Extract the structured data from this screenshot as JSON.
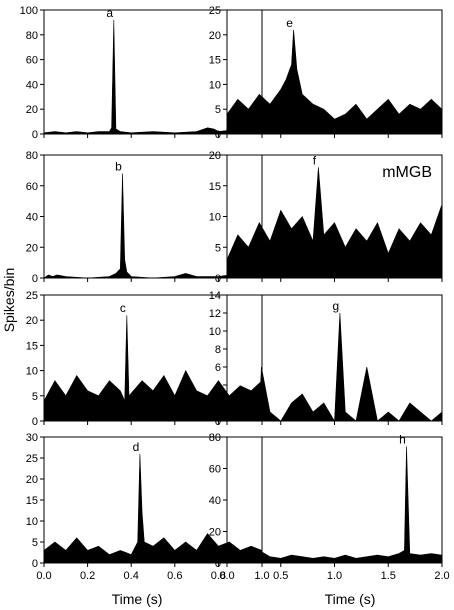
{
  "ylabel": "Spikes/bin",
  "xlabel_left": "Time (s)",
  "xlabel_right": "Time (s)",
  "chart_data": [
    {
      "type": "area",
      "panel": "a",
      "region": "",
      "xlim": [
        0,
        1.0
      ],
      "ylim": [
        0,
        100
      ],
      "yticks": [
        0,
        20,
        40,
        60,
        80,
        100
      ],
      "x": [
        0,
        0.05,
        0.1,
        0.15,
        0.2,
        0.25,
        0.3,
        0.31,
        0.32,
        0.33,
        0.35,
        0.4,
        0.5,
        0.6,
        0.7,
        0.75,
        0.78,
        0.8,
        0.85,
        0.9,
        0.95,
        1.0
      ],
      "y": [
        1,
        2,
        1,
        2,
        1,
        2,
        2,
        5,
        92,
        4,
        2,
        1,
        2,
        1,
        2,
        5,
        4,
        2,
        3,
        1,
        2,
        1
      ],
      "peak": {
        "label": "a",
        "x": 0.32,
        "y": 92
      }
    },
    {
      "type": "area",
      "panel": "b",
      "region": "",
      "xlim": [
        0,
        1.0
      ],
      "ylim": [
        0,
        80
      ],
      "yticks": [
        0,
        20,
        40,
        60,
        80
      ],
      "x": [
        0,
        0.02,
        0.04,
        0.06,
        0.1,
        0.2,
        0.3,
        0.33,
        0.35,
        0.36,
        0.37,
        0.38,
        0.4,
        0.5,
        0.6,
        0.65,
        0.7,
        0.8,
        0.85,
        0.9,
        1.0
      ],
      "y": [
        0,
        2,
        1,
        2,
        1,
        0,
        1,
        3,
        6,
        68,
        12,
        4,
        1,
        0,
        1,
        3,
        1,
        1,
        2,
        0,
        0
      ],
      "peak": {
        "label": "b",
        "x": 0.36,
        "y": 68
      }
    },
    {
      "type": "area",
      "panel": "c",
      "region": "",
      "xlim": [
        0,
        1.0
      ],
      "ylim": [
        0,
        25
      ],
      "yticks": [
        0,
        5,
        10,
        15,
        20,
        25
      ],
      "x": [
        0,
        0.05,
        0.1,
        0.15,
        0.2,
        0.25,
        0.3,
        0.35,
        0.37,
        0.38,
        0.39,
        0.45,
        0.5,
        0.55,
        0.6,
        0.65,
        0.7,
        0.75,
        0.8,
        0.85,
        0.9,
        0.95,
        1.0
      ],
      "y": [
        4,
        8,
        5,
        9,
        6,
        5,
        8,
        6,
        4,
        21,
        5,
        8,
        6,
        9,
        5,
        10,
        6,
        5,
        8,
        5,
        7,
        6,
        8
      ],
      "peak": {
        "label": "c",
        "x": 0.38,
        "y": 21
      }
    },
    {
      "type": "area",
      "panel": "d",
      "region": "",
      "xlim": [
        0,
        1.0
      ],
      "ylim": [
        0,
        30
      ],
      "yticks": [
        0,
        5,
        10,
        15,
        20,
        25,
        30
      ],
      "x": [
        0,
        0.05,
        0.1,
        0.15,
        0.2,
        0.25,
        0.3,
        0.35,
        0.4,
        0.43,
        0.44,
        0.45,
        0.46,
        0.5,
        0.55,
        0.6,
        0.65,
        0.7,
        0.75,
        0.8,
        0.85,
        0.9,
        0.95,
        1.0
      ],
      "y": [
        3,
        5,
        3,
        6,
        3,
        4,
        2,
        3,
        2,
        5,
        26,
        12,
        5,
        4,
        6,
        3,
        5,
        3,
        7,
        4,
        5,
        3,
        4,
        3
      ],
      "peak": {
        "label": "d",
        "x": 0.44,
        "y": 26
      }
    },
    {
      "type": "area",
      "panel": "e",
      "region": "",
      "xlim": [
        0,
        2.0
      ],
      "ylim": [
        0,
        25
      ],
      "yticks": [
        0,
        5,
        10,
        15,
        20,
        25
      ],
      "x": [
        0,
        0.1,
        0.2,
        0.3,
        0.4,
        0.5,
        0.55,
        0.6,
        0.62,
        0.65,
        0.7,
        0.8,
        0.9,
        1.0,
        1.1,
        1.2,
        1.3,
        1.4,
        1.5,
        1.6,
        1.7,
        1.8,
        1.9,
        2.0
      ],
      "y": [
        4,
        7,
        5,
        8,
        6,
        9,
        11,
        14,
        21,
        13,
        8,
        6,
        5,
        3,
        4,
        6,
        3,
        5,
        7,
        4,
        6,
        5,
        7,
        5
      ],
      "peak": {
        "label": "e",
        "x": 0.62,
        "y": 21
      }
    },
    {
      "type": "area",
      "panel": "f",
      "region": "mMGB",
      "xlim": [
        0,
        2.0
      ],
      "ylim": [
        0,
        20
      ],
      "yticks": [
        0,
        5,
        10,
        15,
        20
      ],
      "x": [
        0,
        0.1,
        0.2,
        0.3,
        0.4,
        0.5,
        0.6,
        0.7,
        0.8,
        0.85,
        0.9,
        1.0,
        1.1,
        1.2,
        1.3,
        1.4,
        1.5,
        1.6,
        1.7,
        1.8,
        1.9,
        2.0
      ],
      "y": [
        3,
        7,
        5,
        9,
        6,
        11,
        8,
        10,
        6,
        18,
        7,
        9,
        5,
        8,
        6,
        9,
        4,
        8,
        6,
        9,
        7,
        12
      ],
      "peak": {
        "label": "f",
        "x": 0.85,
        "y": 18
      }
    },
    {
      "type": "area",
      "panel": "g",
      "region": "",
      "xlim": [
        0,
        2.0
      ],
      "ylim": [
        0,
        14
      ],
      "yticks": [
        0,
        2,
        4,
        6,
        8,
        10,
        12,
        14
      ],
      "x": [
        0,
        0.1,
        0.2,
        0.3,
        0.32,
        0.4,
        0.5,
        0.6,
        0.7,
        0.8,
        0.9,
        1.0,
        1.05,
        1.1,
        1.2,
        1.3,
        1.4,
        1.5,
        1.6,
        1.7,
        1.8,
        1.9,
        2.0
      ],
      "y": [
        0,
        1,
        0,
        1,
        6,
        1,
        0,
        2,
        3,
        1,
        2,
        0,
        12,
        1,
        0,
        6,
        0,
        1,
        0,
        2,
        1,
        0,
        1
      ],
      "peak": {
        "label": "g",
        "x": 1.05,
        "y": 12
      }
    },
    {
      "type": "area",
      "panel": "h",
      "region": "",
      "xlim": [
        0,
        2.0
      ],
      "ylim": [
        0,
        80
      ],
      "yticks": [
        0,
        20,
        40,
        60,
        80
      ],
      "x": [
        0,
        0.1,
        0.2,
        0.3,
        0.4,
        0.5,
        0.6,
        0.7,
        0.8,
        0.9,
        1.0,
        1.1,
        1.2,
        1.3,
        1.4,
        1.5,
        1.6,
        1.65,
        1.67,
        1.7,
        1.8,
        1.9,
        2.0
      ],
      "y": [
        3,
        5,
        4,
        8,
        4,
        3,
        5,
        4,
        3,
        4,
        3,
        5,
        3,
        4,
        5,
        4,
        6,
        8,
        74,
        6,
        5,
        6,
        5
      ],
      "peak": {
        "label": "h",
        "x": 1.67,
        "y": 74
      }
    }
  ],
  "xticks_left": [
    "0.0",
    "0.2",
    "0.4",
    "0.6",
    "0.8",
    "1.0"
  ],
  "xticks_right": [
    "0.0",
    "0.5",
    "1.0",
    "1.5",
    "2.0"
  ]
}
